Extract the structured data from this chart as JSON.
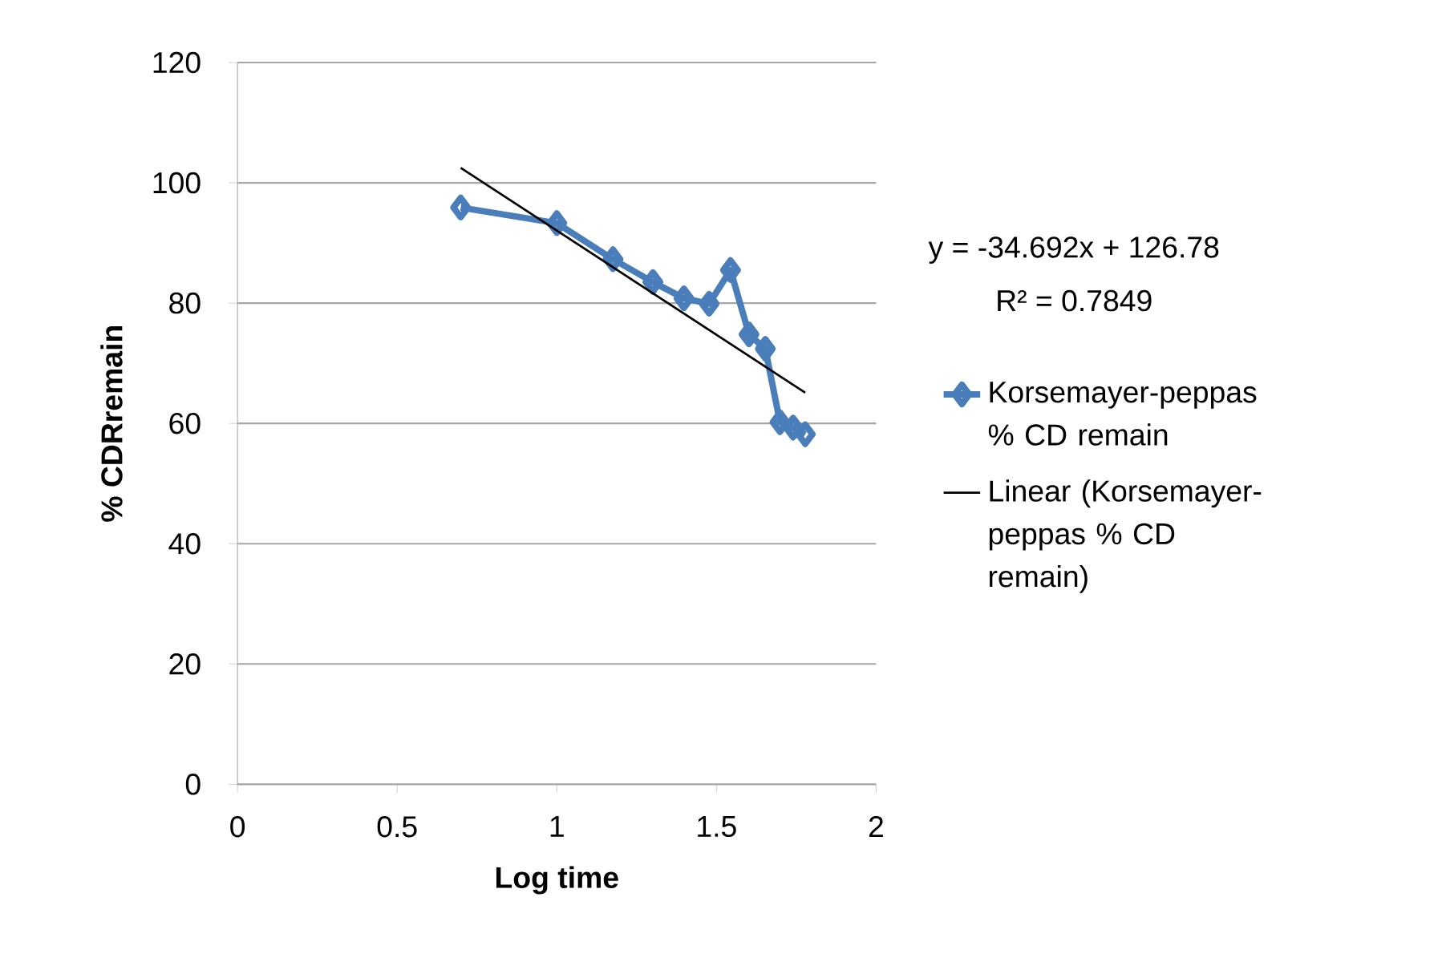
{
  "chart_data": {
    "type": "line",
    "xlabel": "Log time",
    "ylabel": "% CDRremain",
    "xlim": [
      0,
      2
    ],
    "xticks": [
      0,
      0.5,
      1,
      1.5,
      2
    ],
    "ylim": [
      0,
      120
    ],
    "yticks": [
      0,
      20,
      40,
      60,
      80,
      100,
      120
    ],
    "grid": "y",
    "legend": "right",
    "annotations": [
      "y = -34.692x + 126.78",
      "R² = 0.7849"
    ],
    "series": [
      {
        "name": "Korsemayer-peppas % CD remain",
        "color": "#4a7ebb",
        "marker": "diamond",
        "x": [
          0.699,
          1.0,
          1.176,
          1.301,
          1.398,
          1.477,
          1.544,
          1.602,
          1.653,
          1.699,
          1.74,
          1.778
        ],
        "values": [
          95.9,
          93.3,
          87.3,
          83.5,
          80.8,
          79.9,
          85.5,
          74.8,
          72.4,
          60.2,
          59.3,
          58.2
        ]
      },
      {
        "name": "Linear (Korsemayer-peppas % CD remain)",
        "color": "#000000",
        "marker": "none",
        "x": [
          0.699,
          1.778
        ],
        "values": [
          102.5,
          65.1
        ]
      }
    ]
  }
}
